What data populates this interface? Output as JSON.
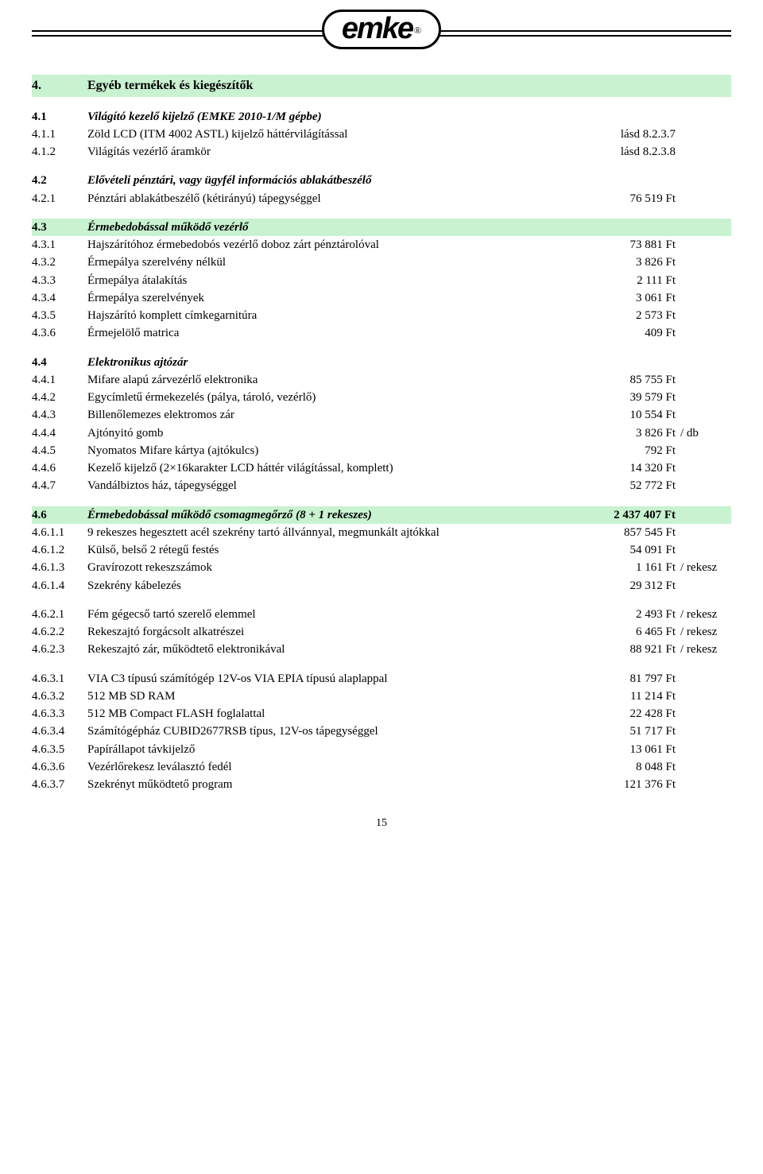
{
  "logo": {
    "text": "emke",
    "reg": "®"
  },
  "page_number": "15",
  "sections": [
    {
      "type": "h1",
      "num": "4.",
      "desc": "Egyéb termékek és kiegészítők"
    },
    {
      "type": "gap"
    },
    {
      "type": "h2",
      "num": "4.1",
      "desc": "Világító kezelő kijelző (EMKE 2010-1/M gépbe)"
    },
    {
      "type": "row",
      "num": "4.1.1",
      "desc": "Zöld LCD (ITM 4002 ASTL) kijelző háttérvilágítással",
      "price": "lásd 8.2.3.7"
    },
    {
      "type": "row",
      "num": "4.1.2",
      "desc": "Világítás vezérlő áramkör",
      "price": "lásd 8.2.3.8"
    },
    {
      "type": "gap"
    },
    {
      "type": "h2",
      "num": "4.2",
      "desc": "Elővételi pénztári, vagy ügyfél információs ablakátbeszélő"
    },
    {
      "type": "row",
      "num": "4.2.1",
      "desc": "Pénztári ablakátbeszélő (kétirányú) tápegységgel",
      "price": "76 519 Ft"
    },
    {
      "type": "gap"
    },
    {
      "type": "h2green",
      "num": "4.3",
      "desc": "Érmebedobással működő vezérlő"
    },
    {
      "type": "row",
      "num": "4.3.1",
      "desc": "Hajszárítóhoz érmebedobós vezérlő doboz  zárt pénztárolóval",
      "price": "73 881 Ft"
    },
    {
      "type": "row",
      "num": "4.3.2",
      "desc": "Érmepálya szerelvény nélkül",
      "price": "3 826 Ft"
    },
    {
      "type": "row",
      "num": "4.3.3",
      "desc": "Érmepálya átalakítás",
      "price": "2 111 Ft"
    },
    {
      "type": "row",
      "num": "4.3.4",
      "desc": "Érmepálya szerelvények",
      "price": "3 061 Ft"
    },
    {
      "type": "row",
      "num": "4.3.5",
      "desc": "Hajszárító komplett címkegarnitúra",
      "price": "2 573 Ft"
    },
    {
      "type": "row",
      "num": "4.3.6",
      "desc": "Érmejelölő matrica",
      "price": "409 Ft"
    },
    {
      "type": "gap"
    },
    {
      "type": "h2",
      "num": "4.4",
      "desc": "Elektronikus ajtózár"
    },
    {
      "type": "row",
      "num": "4.4.1",
      "desc": "Mifare alapú zárvezérlő elektronika",
      "price": "85 755 Ft"
    },
    {
      "type": "row",
      "num": "4.4.2",
      "desc": "Egycímletű érmekezelés (pálya, tároló, vezérlő)",
      "price": "39 579 Ft"
    },
    {
      "type": "row",
      "num": "4.4.3",
      "desc": "Billenőlemezes elektromos zár",
      "price": "10 554 Ft"
    },
    {
      "type": "row",
      "num": "4.4.4",
      "desc": "Ajtónyitó gomb",
      "price": "3 826 Ft",
      "unit": "/ db"
    },
    {
      "type": "row",
      "num": "4.4.5",
      "desc": "Nyomatos Mifare kártya (ajtókulcs)",
      "price": "792 Ft"
    },
    {
      "type": "row",
      "num": "4.4.6",
      "desc": "Kezelő kijelző (2×16karakter LCD háttér világítással, komplett)",
      "price": "14 320 Ft"
    },
    {
      "type": "row",
      "num": "4.4.7",
      "desc": "Vandálbiztos ház, tápegységgel",
      "price": "52 772 Ft"
    },
    {
      "type": "gap"
    },
    {
      "type": "h2green",
      "num": "4.6",
      "desc": "Érmebedobással működő csomagmegőrző (8 + 1 rekeszes)",
      "price": "2 437 407 Ft"
    },
    {
      "type": "row",
      "num": "4.6.1.1",
      "desc": "9 rekeszes hegesztett acél szekrény tartó állvánnyal, megmunkált ajtókkal",
      "price": "857 545 Ft"
    },
    {
      "type": "row",
      "num": "4.6.1.2",
      "desc": "Külső, belső 2 rétegű festés",
      "price": "54 091 Ft"
    },
    {
      "type": "row",
      "num": "4.6.1.3",
      "desc": "Gravírozott rekeszszámok",
      "price": "1 161 Ft",
      "unit": "/ rekesz"
    },
    {
      "type": "row",
      "num": "4.6.1.4",
      "desc": "Szekrény kábelezés",
      "price": "29 312 Ft"
    },
    {
      "type": "gap"
    },
    {
      "type": "row",
      "num": "4.6.2.1",
      "desc": "Fém gégecső tartó szerelő elemmel",
      "price": "2 493 Ft",
      "unit": "/ rekesz"
    },
    {
      "type": "row",
      "num": "4.6.2.2",
      "desc": "Rekeszajtó forgácsolt alkatrészei",
      "price": "6 465 Ft",
      "unit": "/ rekesz"
    },
    {
      "type": "row",
      "num": "4.6.2.3",
      "desc": "Rekeszajtó zár, működtető elektronikával",
      "price": "88 921 Ft",
      "unit": "/ rekesz"
    },
    {
      "type": "gap"
    },
    {
      "type": "row",
      "num": "4.6.3.1",
      "desc": "VIA C3 típusú számítógép  12V-os VIA EPIA típusú alaplappal",
      "price": "81 797 Ft"
    },
    {
      "type": "row",
      "num": "4.6.3.2",
      "desc": " 512 MB SD RAM",
      "price": "11 214 Ft"
    },
    {
      "type": "row",
      "num": "4.6.3.3",
      "desc": " 512 MB Compact FLASH foglalattal",
      "price": "22 428 Ft"
    },
    {
      "type": "row",
      "num": "4.6.3.4",
      "desc": " Számítógépház CUBID2677RSB típus, 12V-os tápegységgel",
      "price": "51 717 Ft"
    },
    {
      "type": "row",
      "num": "4.6.3.5",
      "desc": "Papírállapot távkijelző",
      "price": "13 061 Ft"
    },
    {
      "type": "row",
      "num": "4.6.3.6",
      "desc": " Vezérlőrekesz leválasztó fedél",
      "price": "8 048 Ft"
    },
    {
      "type": "row",
      "num": "4.6.3.7",
      "desc": "Szekrényt működtető program",
      "price": "121 376 Ft"
    }
  ]
}
